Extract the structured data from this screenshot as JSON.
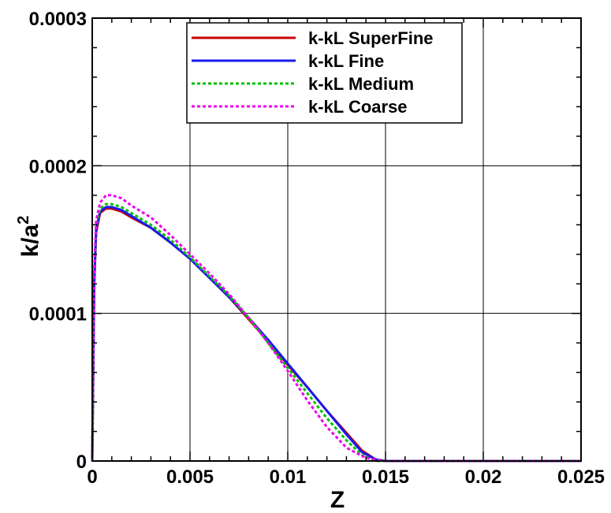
{
  "chart_data": {
    "type": "line",
    "title": "",
    "xlabel": "Z",
    "ylabel_base": "k/a",
    "ylabel_sup": "2",
    "xlim": [
      0,
      0.025
    ],
    "ylim": [
      0,
      0.0003
    ],
    "grid": true,
    "legend_position": "top-center",
    "x_ticks": [
      {
        "value": 0,
        "label": "0"
      },
      {
        "value": 0.005,
        "label": "0.005"
      },
      {
        "value": 0.01,
        "label": "0.01"
      },
      {
        "value": 0.015,
        "label": "0.015"
      },
      {
        "value": 0.02,
        "label": "0.02"
      },
      {
        "value": 0.025,
        "label": "0.025"
      }
    ],
    "y_ticks": [
      {
        "value": 0,
        "label": "0"
      },
      {
        "value": 0.0001,
        "label": "0.0001"
      },
      {
        "value": 0.0002,
        "label": "0.0002"
      },
      {
        "value": 0.0003,
        "label": "0.0003"
      }
    ],
    "series": [
      {
        "name": "k-kL SuperFine",
        "color": "#cc0000",
        "style": "solid",
        "points": [
          [
            0,
            0
          ],
          [
            0.0001,
            0.00012
          ],
          [
            0.0002,
            0.000155
          ],
          [
            0.0004,
            0.000168
          ],
          [
            0.0007,
            0.000171
          ],
          [
            0.001,
            0.000171
          ],
          [
            0.0015,
            0.000169
          ],
          [
            0.002,
            0.000165
          ],
          [
            0.003,
            0.000158
          ],
          [
            0.004,
            0.000148
          ],
          [
            0.005,
            0.000137
          ],
          [
            0.006,
            0.000124
          ],
          [
            0.007,
            0.000111
          ],
          [
            0.008,
            9.6e-05
          ],
          [
            0.009,
            8.1e-05
          ],
          [
            0.01,
            6.5e-05
          ],
          [
            0.011,
            5e-05
          ],
          [
            0.012,
            3.4e-05
          ],
          [
            0.013,
            1.9e-05
          ],
          [
            0.0138,
            7e-06
          ],
          [
            0.0145,
            1e-06
          ],
          [
            0.015,
            0
          ],
          [
            0.025,
            0
          ]
        ]
      },
      {
        "name": "k-kL Fine",
        "color": "#1a1aee",
        "style": "solid",
        "points": [
          [
            0,
            0
          ],
          [
            0.0001,
            0.00012
          ],
          [
            0.0002,
            0.000157
          ],
          [
            0.0004,
            0.000169
          ],
          [
            0.0007,
            0.000172
          ],
          [
            0.001,
            0.000172
          ],
          [
            0.0015,
            0.00017
          ],
          [
            0.002,
            0.000166
          ],
          [
            0.003,
            0.000158
          ],
          [
            0.004,
            0.000148
          ],
          [
            0.005,
            0.000137
          ],
          [
            0.006,
            0.000124
          ],
          [
            0.007,
            0.000111
          ],
          [
            0.008,
            9.7e-05
          ],
          [
            0.009,
            8.2e-05
          ],
          [
            0.01,
            6.6e-05
          ],
          [
            0.011,
            5e-05
          ],
          [
            0.012,
            3.4e-05
          ],
          [
            0.013,
            1.8e-05
          ],
          [
            0.0138,
            6e-06
          ],
          [
            0.0145,
            1e-06
          ],
          [
            0.015,
            0
          ],
          [
            0.025,
            0
          ]
        ]
      },
      {
        "name": "k-kL Medium",
        "color": "#00c000",
        "style": "dotted",
        "points": [
          [
            0,
            0
          ],
          [
            0.0001,
            0.000125
          ],
          [
            0.0002,
            0.00016
          ],
          [
            0.0004,
            0.000171
          ],
          [
            0.0007,
            0.000174
          ],
          [
            0.001,
            0.000174
          ],
          [
            0.0015,
            0.000172
          ],
          [
            0.002,
            0.000168
          ],
          [
            0.003,
            0.00016
          ],
          [
            0.004,
            0.00015
          ],
          [
            0.005,
            0.000138
          ],
          [
            0.006,
            0.000125
          ],
          [
            0.007,
            0.000112
          ],
          [
            0.008,
            9.7e-05
          ],
          [
            0.009,
            8e-05
          ],
          [
            0.01,
            6.3e-05
          ],
          [
            0.011,
            4.6e-05
          ],
          [
            0.012,
            2.9e-05
          ],
          [
            0.013,
            1.4e-05
          ],
          [
            0.0138,
            4e-06
          ],
          [
            0.0145,
            0
          ],
          [
            0.025,
            0
          ]
        ]
      },
      {
        "name": "k-kL Coarse",
        "color": "#ee00ee",
        "style": "dotted",
        "points": [
          [
            0,
            0
          ],
          [
            0.0001,
            0.000128
          ],
          [
            0.0002,
            0.000163
          ],
          [
            0.0004,
            0.000175
          ],
          [
            0.0007,
            0.00018
          ],
          [
            0.001,
            0.00018
          ],
          [
            0.0015,
            0.000178
          ],
          [
            0.002,
            0.000173
          ],
          [
            0.003,
            0.000165
          ],
          [
            0.004,
            0.000153
          ],
          [
            0.005,
            0.00014
          ],
          [
            0.006,
            0.000127
          ],
          [
            0.007,
            0.000113
          ],
          [
            0.008,
            9.7e-05
          ],
          [
            0.009,
            8e-05
          ],
          [
            0.01,
            6.1e-05
          ],
          [
            0.011,
            4.1e-05
          ],
          [
            0.012,
            2.3e-05
          ],
          [
            0.013,
            9e-06
          ],
          [
            0.014,
            2e-06
          ],
          [
            0.015,
            0
          ],
          [
            0.025,
            0
          ]
        ]
      }
    ]
  }
}
